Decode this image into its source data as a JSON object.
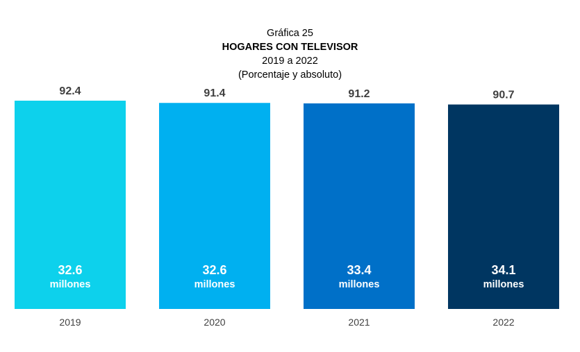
{
  "chart_data": {
    "type": "bar",
    "title_line1": "Gráfica 25",
    "title": "HOGARES CON TELEVISOR",
    "subtitle": "2019 a 2022",
    "subtitle2": "(Porcentaje y absoluto)",
    "categories": [
      "2019",
      "2020",
      "2021",
      "2022"
    ],
    "values": [
      92.4,
      91.4,
      91.2,
      90.7
    ],
    "absolute_labels": [
      "32.6",
      "32.6",
      "33.4",
      "34.1"
    ],
    "absolute_unit": "millones",
    "value_labels": [
      "92.4",
      "91.4",
      "91.2",
      "90.7"
    ],
    "colors": [
      "#0dd1ec",
      "#00b0f0",
      "#0070c8",
      "#003661"
    ],
    "ylim": [
      0,
      100
    ],
    "grid": false,
    "legend": "none"
  }
}
